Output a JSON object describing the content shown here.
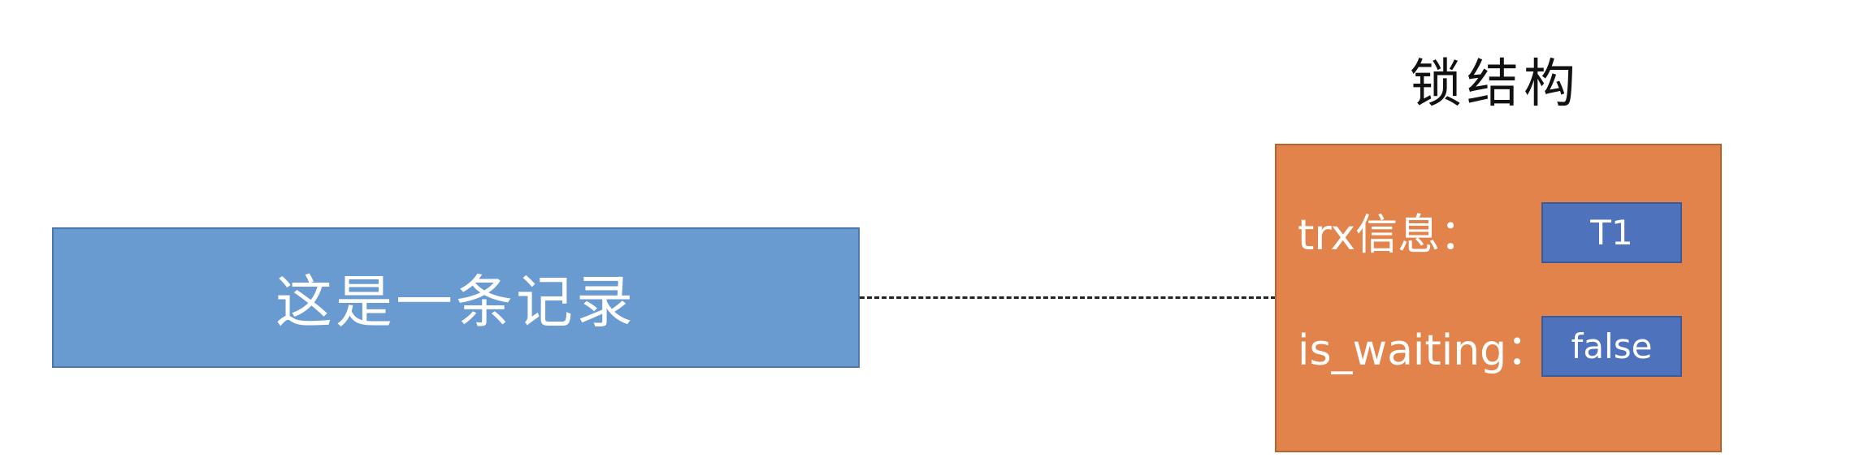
{
  "lock_structure": {
    "title": "锁结构",
    "fields": [
      {
        "label": "trx信息：",
        "value": "T1"
      },
      {
        "label": "is_waiting：",
        "value": "false"
      }
    ]
  },
  "record": {
    "label": "这是一条记录"
  },
  "colors": {
    "record_fill": "#6a9bd0",
    "lock_fill": "#e1834a",
    "value_fill": "#4f72bd"
  }
}
